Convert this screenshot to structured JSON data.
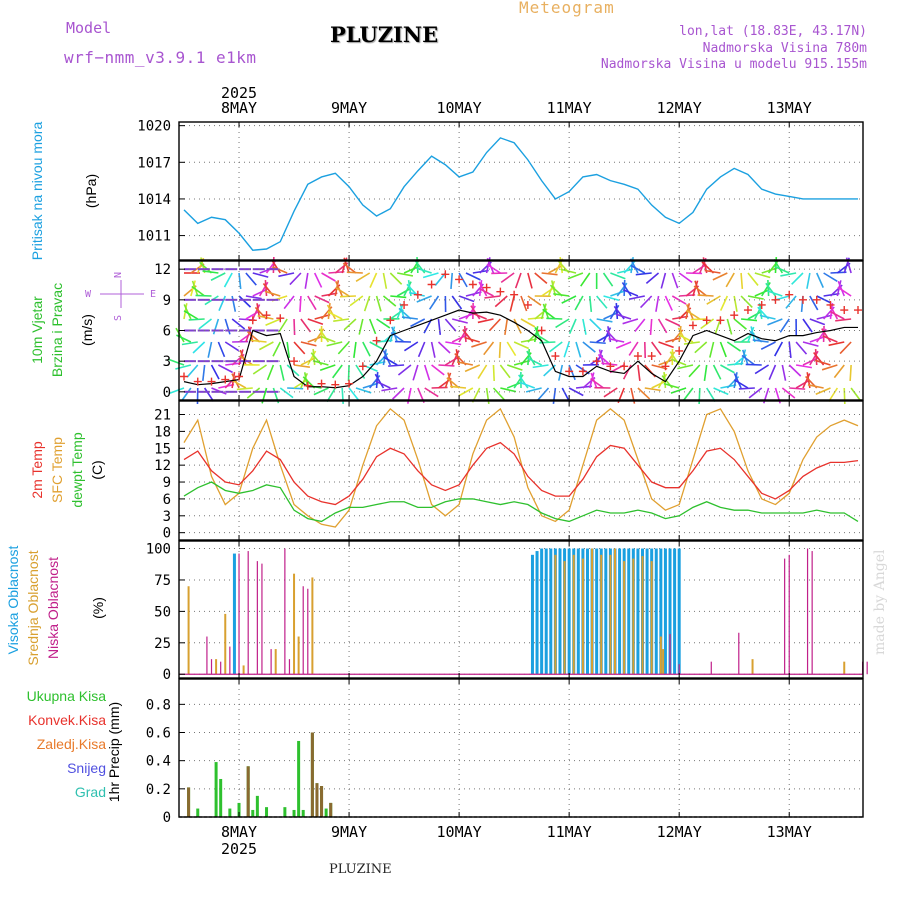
{
  "header": {
    "model_label": "Model",
    "model_name": "wrf−nmm_v3.9.1 e1km",
    "station_title": "PLUZINE",
    "meteogram_label": "Meteogram",
    "lonlat": "lon,lat (18.83E, 43.17N)",
    "elevation": "Nadmorska Visina 780m",
    "model_elevation": "Nadmorska Visina u modelu 915.155m",
    "footer_station": "PLUZINE",
    "watermark": "made by Angel"
  },
  "colors": {
    "pressure": "#1ba0e0",
    "wind_speed": "#000000",
    "gust": "#e8322c",
    "temp2m": "#e8322c",
    "sfc_temp": "#e0a030",
    "dewpoint": "#2ec02e",
    "cloud_high": "#1ba0e0",
    "cloud_mid": "#d8a030",
    "cloud_low": "#c0208a",
    "precip_total": "#2ec02e",
    "precip_conv": "#e8322c",
    "precip_frozen": "#e87a2a",
    "snow": "#5050e0",
    "graupel": "#30c0b0",
    "compass": "#b060d8",
    "header_purple": "#a855d0",
    "meteogram_orange": "#e8b060"
  },
  "chart_data": [
    {
      "type": "line",
      "panel": "pressure",
      "series_name": "Pritisak na nivou mora",
      "ylabel": "(hPa)",
      "yticks": [
        1011,
        1014,
        1017,
        1020
      ],
      "ylim": [
        1009,
        1020.3
      ],
      "x_top_labels": [
        "8MAY",
        "9MAY",
        "10MAY",
        "11MAY",
        "12MAY",
        "13MAY"
      ],
      "x_year": "2025",
      "grid": true,
      "x": [
        0,
        3,
        6,
        9,
        12,
        15,
        18,
        21,
        24,
        27,
        30,
        33,
        36,
        39,
        42,
        45,
        48,
        51,
        54,
        57,
        60,
        63,
        66,
        69,
        72,
        75,
        78,
        81,
        84,
        87,
        90,
        93,
        96,
        99,
        102,
        105,
        108,
        111,
        114,
        117,
        120,
        123,
        126,
        129,
        132,
        135,
        138,
        141,
        144,
        147
      ],
      "values": [
        1013.1,
        1012.0,
        1012.5,
        1012.3,
        1011.2,
        1009.8,
        1009.9,
        1010.5,
        1013.0,
        1015.2,
        1015.8,
        1016.1,
        1015.0,
        1013.5,
        1012.6,
        1013.2,
        1015.0,
        1016.3,
        1017.5,
        1016.8,
        1015.8,
        1016.2,
        1017.8,
        1019.0,
        1018.6,
        1017.2,
        1015.5,
        1014.0,
        1014.6,
        1015.8,
        1016.0,
        1015.5,
        1015.2,
        1014.8,
        1013.5,
        1012.5,
        1012.0,
        1012.9,
        1014.8,
        1015.8,
        1016.5,
        1016.0,
        1014.8,
        1014.4,
        1014.2,
        1014.0,
        1014.0,
        1014.0,
        1014.0,
        1014.0
      ]
    },
    {
      "type": "line",
      "panel": "wind",
      "series_name": "10m Vjetar Brzina i Pravac",
      "ylabel": "(m/s)",
      "yticks": [
        0,
        3,
        6,
        9,
        12
      ],
      "ylim": [
        -0.8,
        12.8
      ],
      "compass": [
        "N",
        "W",
        "E",
        "S"
      ],
      "series": [
        {
          "name": "speed",
          "values": [
            1.0,
            0.7,
            0.8,
            1.0,
            1.2,
            6.0,
            5.5,
            5.7,
            1.5,
            0.5,
            0.5,
            0.4,
            0.6,
            1.5,
            3.0,
            5.5,
            6.0,
            6.5,
            7.0,
            7.5,
            8.0,
            7.7,
            7.8,
            7.5,
            6.8,
            6.0,
            5.0,
            2.0,
            1.5,
            1.5,
            2.5,
            2.0,
            1.8,
            3.0,
            1.8,
            1.0,
            3.0,
            5.5,
            6.0,
            5.5,
            5.0,
            5.7,
            5.2,
            5.0,
            5.5,
            5.5,
            5.8,
            6.0,
            6.3,
            6.3
          ]
        },
        {
          "name": "gust",
          "values": [
            1.5,
            1.0,
            1.0,
            1.2,
            1.5,
            7.0,
            7.5,
            7.2,
            3.0,
            0.6,
            0.8,
            0.7,
            0.8,
            2.5,
            5.0,
            7.0,
            8.5,
            9.5,
            10.5,
            11.5,
            11.0,
            10.5,
            10.2,
            9.8,
            9.5,
            8.5,
            6.0,
            3.5,
            2.0,
            2.0,
            3.0,
            2.5,
            2.5,
            3.5,
            3.5,
            2.5,
            4.0,
            6.5,
            7.0,
            7.0,
            7.5,
            8.0,
            8.5,
            9.0,
            9.5,
            9.0,
            9.0,
            8.5,
            8.0,
            8.0
          ]
        }
      ]
    },
    {
      "type": "line",
      "panel": "temperature",
      "ylabel": "(C)",
      "yticks": [
        0,
        3,
        6,
        9,
        12,
        15,
        18,
        21
      ],
      "ylim": [
        -1.3,
        23.4
      ],
      "series": [
        {
          "name": "2m Temp",
          "values": [
            13.0,
            14.5,
            11.0,
            9.0,
            8.5,
            11.0,
            14.5,
            13.0,
            9.0,
            6.5,
            5.5,
            5.0,
            6.5,
            9.5,
            13.5,
            15.0,
            14.0,
            11.0,
            8.5,
            7.5,
            8.5,
            12.0,
            15.0,
            16.0,
            14.0,
            10.0,
            7.5,
            6.5,
            6.5,
            9.5,
            13.5,
            15.5,
            15.0,
            12.0,
            9.0,
            8.0,
            8.0,
            11.0,
            14.5,
            15.0,
            13.0,
            10.0,
            7.0,
            6.0,
            7.5,
            10.0,
            11.5,
            12.5,
            12.5,
            12.8
          ]
        },
        {
          "name": "SFC Temp",
          "values": [
            16.0,
            20.0,
            10.0,
            5.0,
            7.0,
            15.0,
            20.0,
            12.0,
            5.0,
            3.0,
            1.5,
            1.0,
            4.0,
            12.0,
            19.0,
            22.0,
            20.0,
            13.0,
            5.0,
            3.0,
            5.0,
            14.0,
            20.0,
            22.0,
            17.0,
            8.0,
            3.0,
            2.0,
            4.0,
            12.0,
            20.0,
            22.0,
            20.0,
            13.0,
            6.0,
            4.0,
            5.0,
            13.0,
            21.0,
            22.0,
            18.0,
            11.0,
            6.0,
            5.0,
            7.0,
            13.0,
            17.0,
            19.0,
            20.0,
            19.0
          ]
        },
        {
          "name": "dewpt Temp",
          "values": [
            6.5,
            8.0,
            9.0,
            7.5,
            7.0,
            7.5,
            8.5,
            8.0,
            4.0,
            2.5,
            2.0,
            3.5,
            4.5,
            4.5,
            5.0,
            5.5,
            5.5,
            4.5,
            4.5,
            5.5,
            6.0,
            6.0,
            5.5,
            5.0,
            5.5,
            5.0,
            3.5,
            2.5,
            2.0,
            3.0,
            4.0,
            3.5,
            3.5,
            4.0,
            3.5,
            2.5,
            3.0,
            4.5,
            5.5,
            4.5,
            4.0,
            4.0,
            3.5,
            3.5,
            3.5,
            3.5,
            4.0,
            3.5,
            3.5,
            2.0
          ]
        }
      ]
    },
    {
      "type": "bar",
      "panel": "clouds",
      "ylabel": "(%)",
      "yticks": [
        0,
        25,
        50,
        75,
        100
      ],
      "ylim": [
        -3,
        106
      ],
      "series": [
        {
          "name": "Visoka Oblacnost",
          "points": [
            [
              11.0,
              96
            ],
            [
              76.0,
              95
            ],
            [
              77.0,
              98
            ],
            [
              78.0,
              100
            ],
            [
              79.0,
              100
            ],
            [
              80.0,
              100
            ],
            [
              81.0,
              100
            ],
            [
              82.0,
              100
            ],
            [
              83.0,
              100
            ],
            [
              84.0,
              100
            ],
            [
              85.0,
              100
            ],
            [
              86.0,
              100
            ],
            [
              87.0,
              100
            ],
            [
              88.0,
              100
            ],
            [
              89.0,
              100
            ],
            [
              90.0,
              100
            ],
            [
              91.0,
              100
            ],
            [
              92.0,
              100
            ],
            [
              93.0,
              100
            ],
            [
              94.0,
              100
            ],
            [
              95.0,
              100
            ],
            [
              96.0,
              100
            ],
            [
              97.0,
              100
            ],
            [
              98.0,
              100
            ],
            [
              99.0,
              100
            ],
            [
              100.0,
              100
            ],
            [
              101.0,
              100
            ],
            [
              102.0,
              100
            ],
            [
              103.0,
              100
            ],
            [
              104.0,
              100
            ],
            [
              105.0,
              100
            ],
            [
              106.0,
              100
            ],
            [
              107.0,
              100
            ],
            [
              108.0,
              100
            ]
          ]
        },
        {
          "name": "Srednja Oblacnost",
          "points": [
            [
              1.0,
              70
            ],
            [
              7.0,
              12
            ],
            [
              9.0,
              48
            ],
            [
              13.0,
              7
            ],
            [
              20.0,
              20
            ],
            [
              24.0,
              80
            ],
            [
              25.0,
              30
            ],
            [
              28.0,
              77
            ],
            [
              81.0,
              95
            ],
            [
              83.0,
              90
            ],
            [
              85.0,
              95
            ],
            [
              87.0,
              92
            ],
            [
              89.0,
              100
            ],
            [
              91.0,
              95
            ],
            [
              93.0,
              95
            ],
            [
              94.0,
              100
            ],
            [
              96.0,
              90
            ],
            [
              98.0,
              92
            ],
            [
              100.0,
              94
            ],
            [
              102.0,
              90
            ],
            [
              104.0,
              30
            ],
            [
              104.5,
              20
            ],
            [
              124.0,
              12
            ],
            [
              144.0,
              10
            ]
          ]
        },
        {
          "name": "Niska Oblacnost",
          "points": [
            [
              5.0,
              30
            ],
            [
              6.0,
              12
            ],
            [
              8.0,
              10
            ],
            [
              10.0,
              22
            ],
            [
              12.0,
              96
            ],
            [
              14.0,
              98
            ],
            [
              16.0,
              90
            ],
            [
              17.0,
              88
            ],
            [
              19.0,
              20
            ],
            [
              22.0,
              100
            ],
            [
              23.0,
              12
            ],
            [
              26.0,
              70
            ],
            [
              27.0,
              68
            ],
            [
              106.0,
              32
            ],
            [
              108.0,
              8
            ],
            [
              115.0,
              10
            ],
            [
              121.0,
              33
            ],
            [
              131.0,
              92
            ],
            [
              132.0,
              95
            ],
            [
              136.0,
              100
            ],
            [
              137.0,
              98
            ],
            [
              148.0,
              10
            ],
            [
              149.0,
              10
            ]
          ]
        }
      ]
    },
    {
      "type": "bar",
      "panel": "precipitation",
      "ylabel": "1hr Precip (mm)",
      "yticks": [
        0,
        0.2,
        0.4,
        0.6,
        0.8
      ],
      "ylim": [
        0,
        0.98
      ],
      "x_bottom_labels": [
        "8MAY",
        "9MAY",
        "10MAY",
        "11MAY",
        "12MAY",
        "13MAY"
      ],
      "x_year": "2025",
      "legend": [
        "Ukupna Kisa",
        "Konvek.Kisa",
        "Zaledj.Kisa",
        "Snijeg",
        "Grad"
      ],
      "series": [
        {
          "name": "Ukupna Kisa",
          "points": [
            [
              1.0,
              0.21
            ],
            [
              3.0,
              0.06
            ],
            [
              7.0,
              0.39
            ],
            [
              8.0,
              0.27
            ],
            [
              10.0,
              0.06
            ],
            [
              12.0,
              0.1
            ],
            [
              14.0,
              0.36
            ],
            [
              15.0,
              0.05
            ],
            [
              16.0,
              0.15
            ],
            [
              18.0,
              0.07
            ],
            [
              22.0,
              0.07
            ],
            [
              24.0,
              0.05
            ],
            [
              25.0,
              0.54
            ],
            [
              26.0,
              0.05
            ],
            [
              28.0,
              0.6
            ],
            [
              29.0,
              0.24
            ],
            [
              30.0,
              0.22
            ],
            [
              31.0,
              0.06
            ],
            [
              32.0,
              0.1
            ]
          ]
        },
        {
          "name": "Zaledj.Kisa",
          "points": [
            [
              1.0,
              0.21
            ],
            [
              14.0,
              0.36
            ],
            [
              28.0,
              0.6
            ],
            [
              29.0,
              0.24
            ],
            [
              30.0,
              0.22
            ],
            [
              32.0,
              0.1
            ]
          ]
        }
      ]
    }
  ]
}
